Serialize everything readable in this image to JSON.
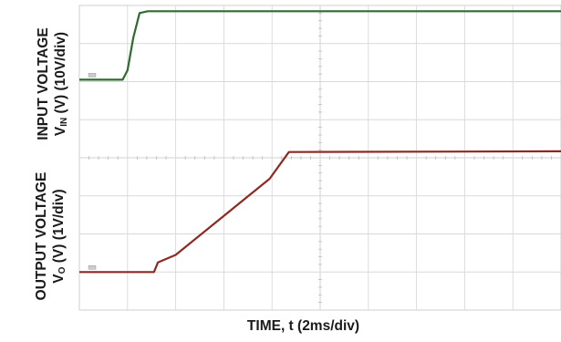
{
  "chart_data": {
    "type": "line",
    "title": "",
    "xlabel": "TIME, t (2ms/div)",
    "ylabel_top": {
      "line1": "INPUT VOLTAGE",
      "line2_main": "V",
      "line2_sub": "IN",
      "line2_rest": " (V) (10V/div)"
    },
    "ylabel_bottom": {
      "line1": "OUTPUT VOLTAGE",
      "line2_main": "V",
      "line2_sub": "O",
      "line2_rest": " (V) (1V/div)"
    },
    "x_divisions": 10,
    "y_divisions": 8,
    "grid": true,
    "grid_style": "oscilloscope graticule, minor ticks on center lines",
    "series": [
      {
        "name": "",
        "label": "",
        "color": "#2f6b2f",
        "x_div": [
          0,
          0.9,
          1.0,
          1.12,
          1.25,
          1.42,
          10.2
        ],
        "y_div": [
          2.05,
          2.05,
          2.3,
          3.15,
          3.8,
          3.85,
          3.85
        ]
      },
      {
        "name": "",
        "label": "",
        "color": "#8c2a22",
        "x_div": [
          0,
          1.4,
          1.55,
          1.63,
          2.0,
          3.95,
          4.35,
          10.2
        ],
        "y_div": [
          -3.0,
          -3.0,
          -3.0,
          -2.75,
          -2.55,
          -0.55,
          0.15,
          0.17
        ]
      }
    ],
    "colors": {
      "input_trace": "#2f6b2f",
      "output_trace": "#8c2a22",
      "grid": "#d9d9d9",
      "frame": "#cfcfcf",
      "label_text": "#1a1a1a"
    }
  }
}
